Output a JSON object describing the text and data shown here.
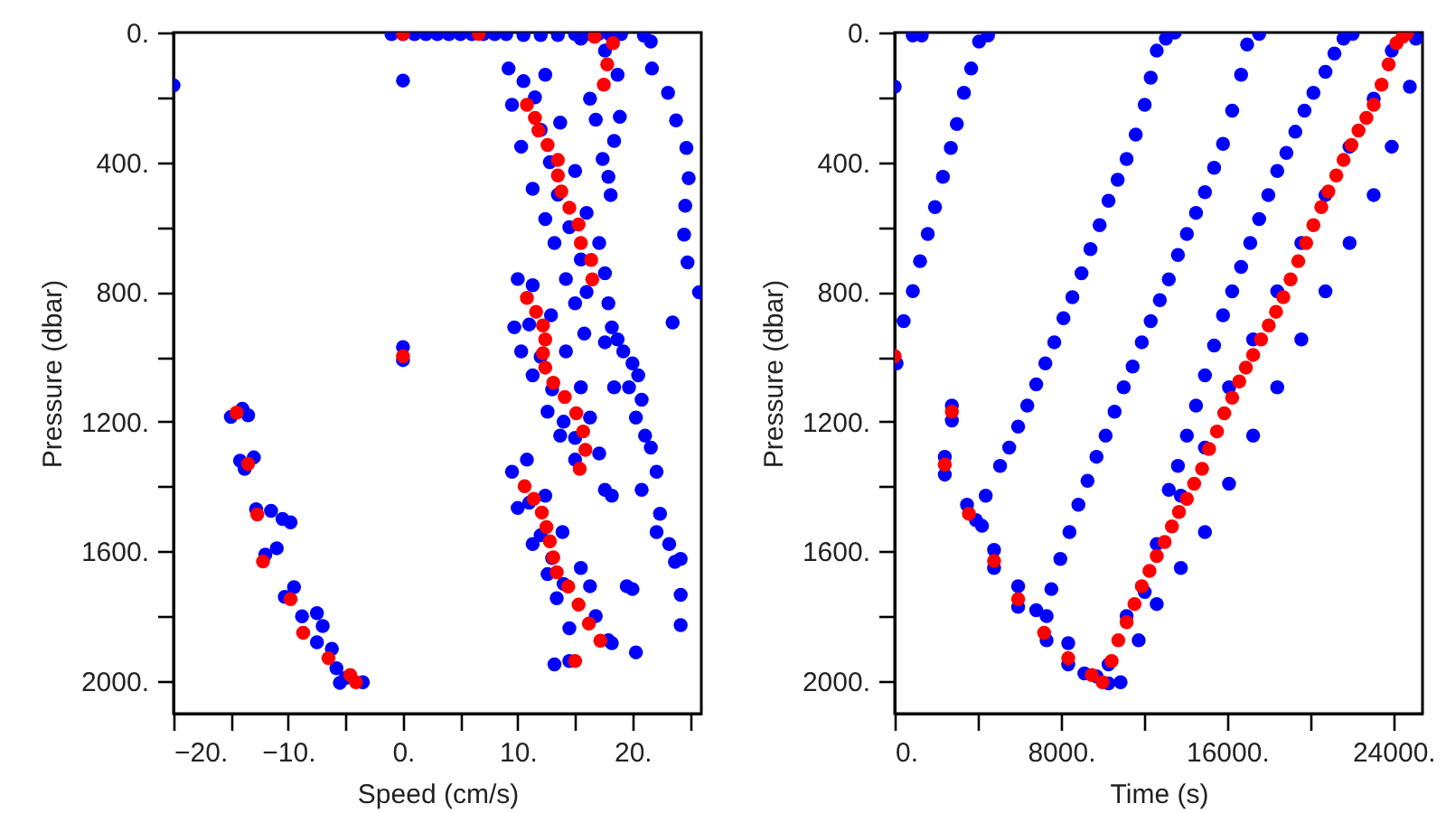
{
  "chart_data": [
    {
      "type": "scatter",
      "xlabel": "Speed (cm/s)",
      "ylabel": "Pressure (dbar)",
      "xlim": [
        -20,
        26
      ],
      "ylim": [
        2100,
        0
      ],
      "marker": "circle",
      "grid": false,
      "xticks": [
        {
          "value": -20,
          "label": "−20."
        },
        {
          "value": -15,
          "label": null
        },
        {
          "value": -10,
          "label": "−10."
        },
        {
          "value": -5,
          "label": null
        },
        {
          "value": 0,
          "label": "0."
        },
        {
          "value": 5,
          "label": null
        },
        {
          "value": 10,
          "label": "10."
        },
        {
          "value": 15,
          "label": null
        },
        {
          "value": 20,
          "label": "20."
        },
        {
          "value": 25,
          "label": null
        }
      ],
      "yticks": [
        {
          "value": 0,
          "label": "0."
        },
        {
          "value": 200,
          "label": null
        },
        {
          "value": 400,
          "label": "400."
        },
        {
          "value": 600,
          "label": null
        },
        {
          "value": 800,
          "label": "800."
        },
        {
          "value": 1000,
          "label": null
        },
        {
          "value": 1200,
          "label": "1200."
        },
        {
          "value": 1400,
          "label": null
        },
        {
          "value": 1600,
          "label": "1600."
        },
        {
          "value": 1800,
          "label": null
        },
        {
          "value": 2000,
          "label": "2000."
        }
      ],
      "series": [
        {
          "color": "#0000ff",
          "x": [
            -1,
            0,
            1,
            2,
            3,
            4,
            5,
            6,
            7,
            8,
            9,
            10.5,
            12,
            13.5,
            15,
            16,
            17,
            18,
            19,
            21,
            21.6,
            -20,
            0,
            21.7,
            23.1,
            23.8,
            24.7,
            24.9,
            24.6,
            24.5,
            24.8,
            25.8,
            23.5,
            15.5,
            17.6,
            18.7,
            16.3,
            18.9,
            16.8,
            18.4,
            17.4,
            17.9,
            18.1,
            9.2,
            9.5,
            10.3,
            11.3,
            12.4,
            13.2,
            14.2,
            15,
            15.8,
            12.4,
            13.7,
            15,
            16,
            17.1,
            17.6,
            17.9,
            18.2,
            10.5,
            11.5,
            12,
            12.8,
            13.5,
            14.5,
            15.5,
            16,
            17.6,
            19.2,
            20,
            19.7,
            20.8,
            20.3,
            21.1,
            21.6,
            22.1,
            20.8,
            22.4,
            22.1,
            23.2,
            23.7,
            24.2,
            19.5,
            20,
            24.2,
            24.2,
            20.3,
            18.7,
            18.4,
            20.5,
            10,
            9.7,
            10.3,
            11.3,
            12.6,
            13.7,
            15,
            11.3,
            12.9,
            14.2,
            15.5,
            16.3,
            17.1,
            17.6,
            18.2,
            11,
            12,
            13,
            14,
            15,
            9.5,
            10,
            11.3,
            12.6,
            13.4,
            14.5,
            10.8,
            12.4,
            13.9,
            15.5,
            16.3,
            16.8,
            17.9,
            18.2,
            13.2,
            14.5,
            11,
            12,
            13,
            14,
            -15,
            -14,
            -13.5,
            -14.2,
            -13,
            -13.8,
            -12.8,
            -11.5,
            -10.5,
            -9.8,
            -12,
            -11,
            -10.3,
            -9.5,
            -8.8,
            -7.5,
            -7,
            -7.5,
            -6.2,
            -5.8,
            -5,
            -3.5,
            -5.5,
            0,
            0
          ],
          "values": [
            5,
            5,
            5,
            5,
            5,
            5,
            5,
            5,
            5,
            5,
            5,
            8,
            8,
            8,
            5,
            5,
            5,
            5,
            5,
            10,
            28,
            163,
            148,
            111,
            186,
            271,
            356,
            449,
            534,
            623,
            709,
            801,
            894,
            19,
            56,
            130,
            204,
            260,
            269,
            334,
            390,
            445,
            501,
            111,
            223,
            352,
            482,
            575,
            649,
            760,
            835,
            928,
            130,
            278,
            427,
            556,
            649,
            742,
            835,
            909,
            150,
            200,
            300,
            400,
            500,
            600,
            700,
            800,
            955,
            983,
            1020,
            1094,
            1132,
            1187,
            1243,
            1280,
            1354,
            1410,
            1484,
            1540,
            1577,
            1632,
            1623,
            1707,
            1716,
            1734,
            1827,
            1911,
            946,
            1094,
            1057,
            760,
            909,
            983,
            1057,
            1169,
            1243,
            1317,
            779,
            872,
            983,
            1094,
            1187,
            1298,
            1410,
            1428,
            900,
            1000,
            1100,
            1200,
            1250,
            1354,
            1466,
            1577,
            1670,
            1744,
            1837,
            1317,
            1428,
            1540,
            1651,
            1707,
            1799,
            1874,
            1883,
            1948,
            1938,
            1450,
            1550,
            1620,
            1700,
            1185,
            1160,
            1180,
            1320,
            1310,
            1345,
            1470,
            1475,
            1500,
            1510,
            1610,
            1590,
            1740,
            1710,
            1800,
            1790,
            1830,
            1880,
            1900,
            1960,
            1990,
            2003,
            2005,
            970,
            1010
          ]
        },
        {
          "color": "#ff0000",
          "x": [
            0,
            6.6,
            16.7,
            18.3,
            17.8,
            17.5,
            10.8,
            11.5,
            11.8,
            12.6,
            13.5,
            13.5,
            13.8,
            14.5,
            15.3,
            15.5,
            16.4,
            16.5,
            10.8,
            11.6,
            12.2,
            12.4,
            12.2,
            12.4,
            13.1,
            14.1,
            15.1,
            15.7,
            15.9,
            15.4,
            10.6,
            11.4,
            12.1,
            12.5,
            12.8,
            13.1,
            13.4,
            14.4,
            15.3,
            16.2,
            17.2,
            15,
            0,
            -14.5,
            -13.5,
            -12.7,
            -12.2,
            -9.8,
            -8.7,
            -6.5,
            -4.6,
            -4.1
          ],
          "values": [
            4,
            4,
            13,
            33,
            98,
            161,
            223,
            263,
            302,
            347,
            393,
            441,
            490,
            540,
            592,
            649,
            701,
            761,
            818,
            861,
            903,
            946,
            989,
            1033,
            1080,
            1124,
            1174,
            1230,
            1287,
            1345,
            1399,
            1438,
            1480,
            1525,
            1569,
            1618,
            1664,
            1708,
            1764,
            1822,
            1875,
            1938,
            998,
            1172,
            1330,
            1486,
            1631,
            1747,
            1851,
            1929,
            1981,
            2003
          ]
        }
      ]
    },
    {
      "type": "scatter",
      "xlabel": "Time (s)",
      "ylabel": "Pressure (dbar)",
      "xlim": [
        0,
        25400
      ],
      "ylim": [
        2100,
        0
      ],
      "marker": "circle",
      "grid": false,
      "xticks": [
        {
          "value": 0,
          "label": "0."
        },
        {
          "value": 4000,
          "label": null
        },
        {
          "value": 8000,
          "label": "8000."
        },
        {
          "value": 12000,
          "label": null
        },
        {
          "value": 16000,
          "label": "16000."
        },
        {
          "value": 20000,
          "label": null
        },
        {
          "value": 24000,
          "label": "24000."
        }
      ],
      "yticks": [
        {
          "value": 0,
          "label": "0."
        },
        {
          "value": 200,
          "label": null
        },
        {
          "value": 400,
          "label": "400."
        },
        {
          "value": 600,
          "label": null
        },
        {
          "value": 800,
          "label": "800."
        },
        {
          "value": 1000,
          "label": null
        },
        {
          "value": 1200,
          "label": "1200."
        },
        {
          "value": 1400,
          "label": null
        },
        {
          "value": 1600,
          "label": "1600."
        },
        {
          "value": 1800,
          "label": null
        },
        {
          "value": 2000,
          "label": "2000."
        }
      ],
      "series": [
        {
          "color": "#0000ff",
          "x": [
            0,
            90,
            870,
            1300,
            430,
            870,
            1220,
            1590,
            1940,
            2320,
            2700,
            2990,
            3330,
            3680,
            4060,
            4490,
            2750,
            2750,
            2410,
            2410,
            3480,
            3910,
            4200,
            4780,
            4780,
            5940,
            5940,
            6810,
            7310,
            7310,
            8350,
            8350,
            9130,
            10290,
            9710,
            4380,
            5070,
            5510,
            5940,
            6380,
            6810,
            7250,
            7680,
            8120,
            8550,
            8990,
            9420,
            9860,
            10290,
            10730,
            11160,
            11600,
            12030,
            12320,
            12610,
            13050,
            13480,
            7540,
            7970,
            8410,
            8840,
            9280,
            9710,
            10150,
            10580,
            11020,
            11450,
            11890,
            12320,
            12760,
            13190,
            13630,
            14060,
            14500,
            14930,
            15370,
            15800,
            16240,
            16670,
            16960,
            17540,
            13190,
            13630,
            14060,
            14500,
            14930,
            15370,
            15800,
            16240,
            16670,
            17110,
            17540,
            17980,
            18410,
            18850,
            19280,
            19720,
            20150,
            20730,
            21160,
            21600,
            22040,
            10290,
            11160,
            12030,
            12610,
            13770,
            14930,
            16090,
            17250,
            18410,
            19570,
            20730,
            21890,
            23050,
            23920,
            10870,
            11740,
            12610,
            13770,
            14930,
            16090,
            17250,
            18410,
            19570,
            20730,
            21890,
            23050,
            23920,
            24790,
            25080
          ],
          "values": [
            167,
            1020,
            9,
            9,
            890,
            797,
            705,
            621,
            538,
            445,
            356,
            282,
            186,
            111,
            28,
            9,
            1150,
            1196,
            1308,
            1363,
            1456,
            1503,
            1521,
            1595,
            1651,
            1707,
            1771,
            1781,
            1799,
            1874,
            1883,
            1948,
            1976,
            2007,
            1985,
            1428,
            1336,
            1280,
            1215,
            1150,
            1085,
            1020,
            955,
            881,
            816,
            742,
            668,
            594,
            519,
            454,
            390,
            315,
            223,
            139,
            56,
            19,
            0,
            1716,
            1623,
            1540,
            1456,
            1382,
            1308,
            1243,
            1169,
            1094,
            1030,
            955,
            890,
            825,
            761,
            686,
            621,
            556,
            492,
            417,
            343,
            241,
            130,
            37,
            4,
            1410,
            1336,
            1243,
            1150,
            1057,
            965,
            872,
            798,
            723,
            649,
            575,
            501,
            427,
            371,
            306,
            241,
            186,
            121,
            65,
            19,
            4,
            1948,
            1799,
            1725,
            1577,
            1428,
            1280,
            1094,
            946,
            798,
            649,
            501,
            352,
            204,
            56,
            2003,
            1874,
            1762,
            1651,
            1540,
            1391,
            1243,
            1094,
            946,
            798,
            649,
            501,
            352,
            167,
            19
          ]
        },
        {
          "color": "#ff0000",
          "x": [
            0,
            2750,
            2410,
            3570,
            4780,
            5940,
            7190,
            8350,
            9480,
            10000,
            10440,
            10760,
            11160,
            11540,
            11890,
            12260,
            12610,
            12990,
            13340,
            13680,
            14060,
            14410,
            14790,
            15130,
            15510,
            15860,
            16240,
            16580,
            16900,
            17250,
            17630,
            18000,
            18350,
            18700,
            19050,
            19420,
            19800,
            20150,
            20530,
            20870,
            21250,
            21600,
            21980,
            22320,
            22700,
            23050,
            23430,
            23770,
            24150,
            24440,
            24640
          ],
          "values": [
            998,
            1169,
            1332,
            1484,
            1629,
            1747,
            1851,
            1929,
            1981,
            2003,
            1938,
            1874,
            1818,
            1762,
            1707,
            1660,
            1614,
            1571,
            1523,
            1478,
            1438,
            1391,
            1345,
            1284,
            1230,
            1174,
            1126,
            1076,
            1033,
            994,
            946,
            903,
            861,
            816,
            761,
            705,
            649,
            594,
            538,
            490,
            441,
            393,
            347,
            302,
            263,
            223,
            161,
            98,
            33,
            13,
            4
          ]
        }
      ]
    }
  ]
}
